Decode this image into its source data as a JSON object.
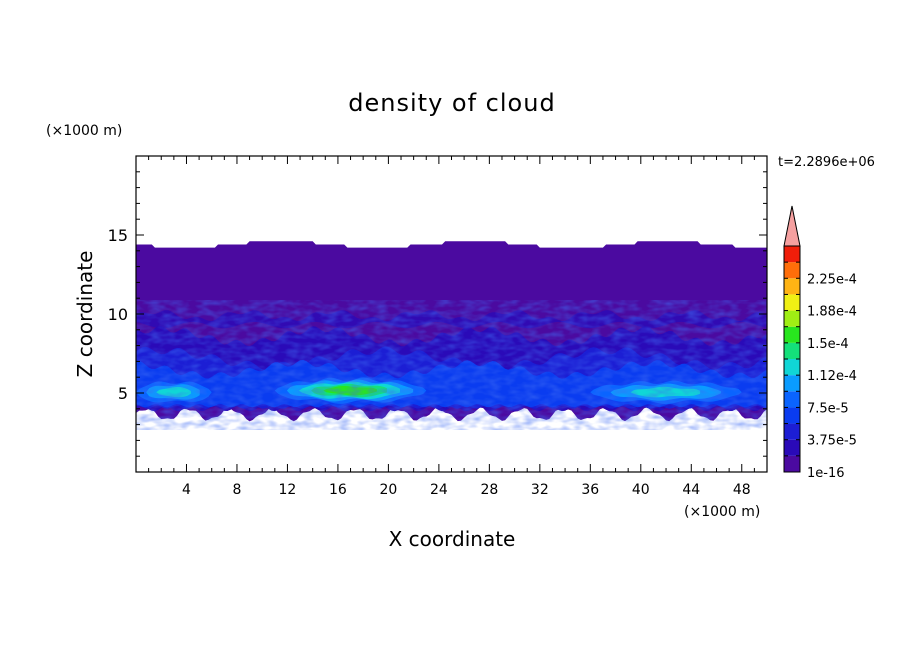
{
  "chart_data": {
    "type": "heatmap",
    "title": "density of cloud",
    "time_label": "t=2.2896e+06",
    "xlabel": "X coordinate",
    "ylabel": "Z coordinate",
    "x_unit": "(×1000 m)",
    "y_unit": "(×1000 m)",
    "xlim": [
      0,
      50
    ],
    "ylim": [
      0,
      20
    ],
    "x_ticks": [
      4,
      8,
      12,
      16,
      20,
      24,
      28,
      32,
      36,
      40,
      44,
      48
    ],
    "y_ticks": [
      5,
      10,
      15
    ],
    "colorbar": {
      "levels": [
        1e-16,
        1.875e-05,
        3.75e-05,
        5.625e-05,
        7.5e-05,
        9.375e-05,
        0.000112,
        0.000131,
        0.00015,
        0.000169,
        0.000188,
        0.000206,
        0.000225,
        0.000244
      ],
      "colors": [
        "#4b0aa0",
        "#2a0ab8",
        "#1c1ed4",
        "#0a3cf0",
        "#0a64ff",
        "#0a9cff",
        "#10d6d6",
        "#14e07a",
        "#28e61e",
        "#a0ee14",
        "#f0f014",
        "#ffb414",
        "#ff6e0a",
        "#f01e0a"
      ],
      "tick_labels": [
        "1e-16",
        "3.75e-5",
        "7.5e-5",
        "1.12e-4",
        "1.5e-4",
        "1.88e-4",
        "2.25e-4"
      ],
      "over_color": "#f5a0a0"
    },
    "cloud_layer": {
      "base_z_range": [
        3.3,
        4.0
      ],
      "top_z_range": [
        14.2,
        14.6
      ],
      "high_density_regions": [
        {
          "x_range": [
            11,
            23
          ],
          "z_range": [
            4.3,
            6.0
          ],
          "peak": "1.5e-4"
        },
        {
          "x_range": [
            36,
            48
          ],
          "z_range": [
            4.3,
            5.8
          ],
          "peak": "1.12e-4"
        },
        {
          "x_range": [
            0,
            6
          ],
          "z_range": [
            4.3,
            5.8
          ],
          "peak": "1.12e-4"
        }
      ]
    }
  }
}
